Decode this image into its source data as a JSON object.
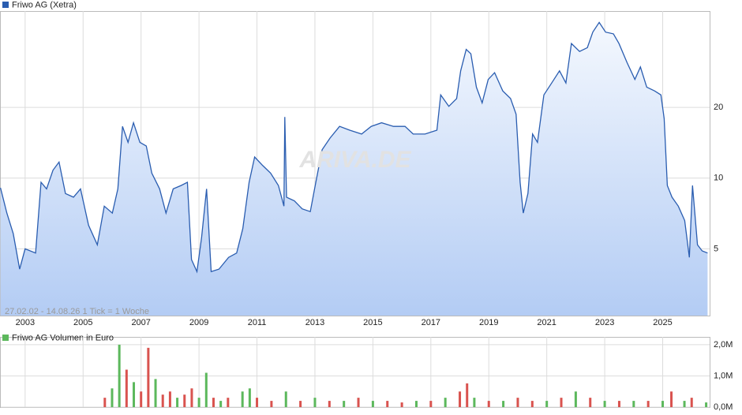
{
  "chart_data": [
    {
      "type": "line",
      "title": "Friwo AG (Xetra)",
      "annotation": "27.02.02 - 14.08.26   1 Tick = 1 Woche",
      "watermark": "ARIVA.DE",
      "log_scale": true,
      "grid": true,
      "color": "#2a5db0",
      "xlim": [
        2002.16,
        2026.62
      ],
      "xticks": [
        2003,
        2005,
        2007,
        2009,
        2011,
        2013,
        2015,
        2017,
        2019,
        2021,
        2023,
        2025
      ],
      "ylim": [
        2.6,
        51.4
      ],
      "yticks": [
        5,
        10,
        20
      ],
      "x": [
        2002.15,
        2002.37,
        2002.59,
        2002.81,
        2003.0,
        2003.36,
        2003.55,
        2003.74,
        2003.96,
        2004.17,
        2004.39,
        2004.67,
        2004.91,
        2005.19,
        2005.49,
        2005.73,
        2006.01,
        2006.2,
        2006.36,
        2006.55,
        2006.74,
        2006.96,
        2007.18,
        2007.37,
        2007.64,
        2007.86,
        2008.11,
        2008.38,
        2008.6,
        2008.74,
        2008.93,
        2009.09,
        2009.26,
        2009.42,
        2009.69,
        2010.02,
        2010.3,
        2010.51,
        2010.73,
        2010.92,
        2011.2,
        2011.47,
        2011.74,
        2011.93,
        2011.96,
        2012.02,
        2012.29,
        2012.56,
        2012.84,
        2013.03,
        2013.25,
        2013.52,
        2013.85,
        2014.2,
        2014.61,
        2014.94,
        2015.3,
        2015.71,
        2016.11,
        2016.39,
        2016.8,
        2017.21,
        2017.34,
        2017.62,
        2017.89,
        2018.03,
        2018.22,
        2018.38,
        2018.57,
        2018.77,
        2018.98,
        2019.2,
        2019.48,
        2019.75,
        2019.94,
        2020.08,
        2020.19,
        2020.35,
        2020.51,
        2020.68,
        2020.9,
        2021.17,
        2021.44,
        2021.66,
        2021.85,
        2022.13,
        2022.4,
        2022.59,
        2022.81,
        2023.03,
        2023.3,
        2023.49,
        2023.77,
        2024.04,
        2024.23,
        2024.45,
        2024.72,
        2024.94,
        2025.05,
        2025.16,
        2025.32,
        2025.54,
        2025.76,
        2025.92,
        2026.03,
        2026.2,
        2026.36,
        2026.55
      ],
      "series": [
        {
          "name": "Friwo AG (Xetra)",
          "color": "#2a5db0",
          "values": [
            9.1,
            7.1,
            5.8,
            4.1,
            5.0,
            4.8,
            9.6,
            9.0,
            10.8,
            11.7,
            8.6,
            8.3,
            9.0,
            6.3,
            5.2,
            7.6,
            7.1,
            9.0,
            16.6,
            14.2,
            17.2,
            14.2,
            13.7,
            10.5,
            9.0,
            7.1,
            9.0,
            9.3,
            9.6,
            4.5,
            4.0,
            5.6,
            9.0,
            4.0,
            4.1,
            4.6,
            4.8,
            6.1,
            9.6,
            12.3,
            11.3,
            10.5,
            9.3,
            7.6,
            18.2,
            8.3,
            8.0,
            7.4,
            7.2,
            9.6,
            13.2,
            14.8,
            16.6,
            16.0,
            15.4,
            16.6,
            17.2,
            16.6,
            16.6,
            15.4,
            15.4,
            16.0,
            22.6,
            20.2,
            21.8,
            28.6,
            35.3,
            33.8,
            24.4,
            20.9,
            26.3,
            28.1,
            23.5,
            21.8,
            18.7,
            9.6,
            7.1,
            8.6,
            15.4,
            14.2,
            22.6,
            25.4,
            28.6,
            25.4,
            37.4,
            34.6,
            35.9,
            41.8,
            46.0,
            41.8,
            41.1,
            37.4,
            31.0,
            26.3,
            29.7,
            24.4,
            23.5,
            22.6,
            17.9,
            9.3,
            8.3,
            7.6,
            6.6,
            4.6,
            9.3,
            5.2,
            4.9,
            4.8
          ]
        }
      ]
    },
    {
      "type": "bar",
      "title": "Friwo AG Volumen in Euro",
      "grid": true,
      "xlim": [
        2002.16,
        2026.62
      ],
      "ylim": [
        0,
        2250000
      ],
      "yticks": [
        {
          "value": 0,
          "label": "0,0M"
        },
        {
          "value": 1000000,
          "label": "1,0M"
        },
        {
          "value": 2000000,
          "label": "2,0M"
        }
      ],
      "x": [
        2005.75,
        2006.0,
        2006.25,
        2006.5,
        2006.75,
        2007.0,
        2007.25,
        2007.5,
        2007.75,
        2008.0,
        2008.25,
        2008.5,
        2008.75,
        2009.0,
        2009.25,
        2009.5,
        2009.75,
        2010.0,
        2010.5,
        2010.75,
        2011.0,
        2011.5,
        2012.0,
        2012.5,
        2013.0,
        2013.5,
        2014.0,
        2014.5,
        2015.0,
        2015.5,
        2016.0,
        2016.5,
        2017.0,
        2017.5,
        2018.0,
        2018.25,
        2018.5,
        2019.0,
        2019.5,
        2020.0,
        2020.5,
        2021.0,
        2021.5,
        2022.0,
        2022.5,
        2023.0,
        2023.5,
        2024.0,
        2024.5,
        2025.0,
        2025.3,
        2025.75,
        2026.0,
        2026.5
      ],
      "values": [
        300000,
        600000,
        2000000,
        1200000,
        800000,
        500000,
        1900000,
        900000,
        400000,
        500000,
        300000,
        400000,
        600000,
        300000,
        1100000,
        300000,
        200000,
        300000,
        500000,
        600000,
        300000,
        200000,
        500000,
        200000,
        300000,
        200000,
        200000,
        300000,
        200000,
        200000,
        150000,
        200000,
        200000,
        300000,
        500000,
        760000,
        300000,
        200000,
        200000,
        300000,
        200000,
        200000,
        300000,
        500000,
        300000,
        200000,
        200000,
        200000,
        200000,
        200000,
        500000,
        200000,
        300000,
        150000
      ],
      "colors": [
        "#d9534f",
        "#5cb85c",
        "#5cb85c",
        "#d9534f",
        "#5cb85c",
        "#d9534f",
        "#d9534f",
        "#5cb85c",
        "#d9534f",
        "#d9534f",
        "#5cb85c",
        "#d9534f",
        "#d9534f",
        "#5cb85c",
        "#5cb85c",
        "#d9534f",
        "#5cb85c",
        "#d9534f",
        "#5cb85c",
        "#5cb85c",
        "#d9534f",
        "#d9534f",
        "#5cb85c",
        "#d9534f",
        "#5cb85c",
        "#d9534f",
        "#5cb85c",
        "#d9534f",
        "#5cb85c",
        "#d9534f",
        "#d9534f",
        "#5cb85c",
        "#d9534f",
        "#5cb85c",
        "#d9534f",
        "#d9534f",
        "#5cb85c",
        "#d9534f",
        "#5cb85c",
        "#d9534f",
        "#d9534f",
        "#5cb85c",
        "#d9534f",
        "#5cb85c",
        "#d9534f",
        "#5cb85c",
        "#d9534f",
        "#5cb85c",
        "#d9534f",
        "#5cb85c",
        "#d9534f",
        "#5cb85c",
        "#d9534f",
        "#5cb85c"
      ]
    }
  ]
}
